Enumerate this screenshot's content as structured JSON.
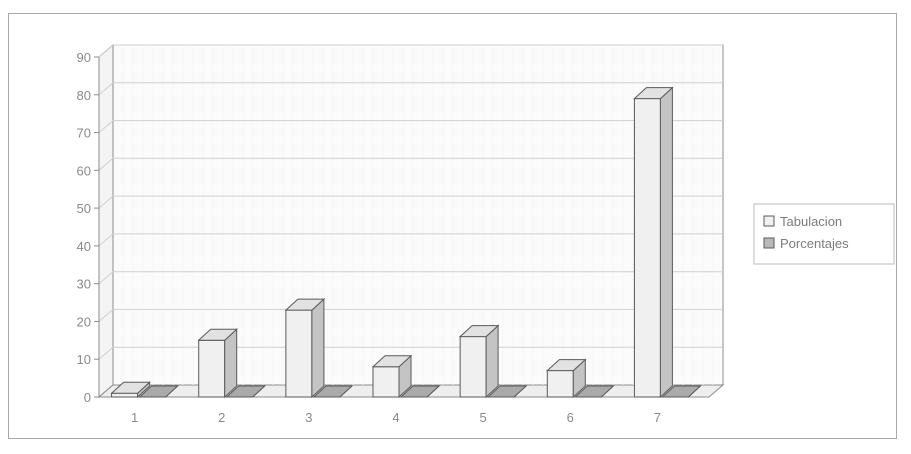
{
  "chart_data": {
    "type": "bar",
    "categories": [
      "1",
      "2",
      "3",
      "4",
      "5",
      "6",
      "7"
    ],
    "series": [
      {
        "name": "Tabulacion",
        "values": [
          1,
          15,
          23,
          8,
          16,
          7,
          79
        ]
      },
      {
        "name": "Porcentajes",
        "values": [
          0,
          0,
          0,
          0,
          0,
          0,
          0
        ]
      }
    ],
    "y_ticks": [
      "0",
      "10",
      "20",
      "30",
      "40",
      "50",
      "60",
      "70",
      "80",
      "90"
    ],
    "ylim": [
      0,
      90
    ],
    "grid": true,
    "legend_position": "right",
    "colors": {
      "tabulacion_front": "#f0f0f0",
      "tabulacion_side": "#c4c4c4",
      "tabulacion_top": "#e2e2e2",
      "porcentajes_front": "#b9b9b9",
      "porcentajes_side": "#9a9a9a",
      "porcentajes_top": "#aaaaaa",
      "bar_stroke": "#5a5a5a",
      "grid": "#cfcfcf",
      "axis": "#8c8c8c"
    }
  }
}
